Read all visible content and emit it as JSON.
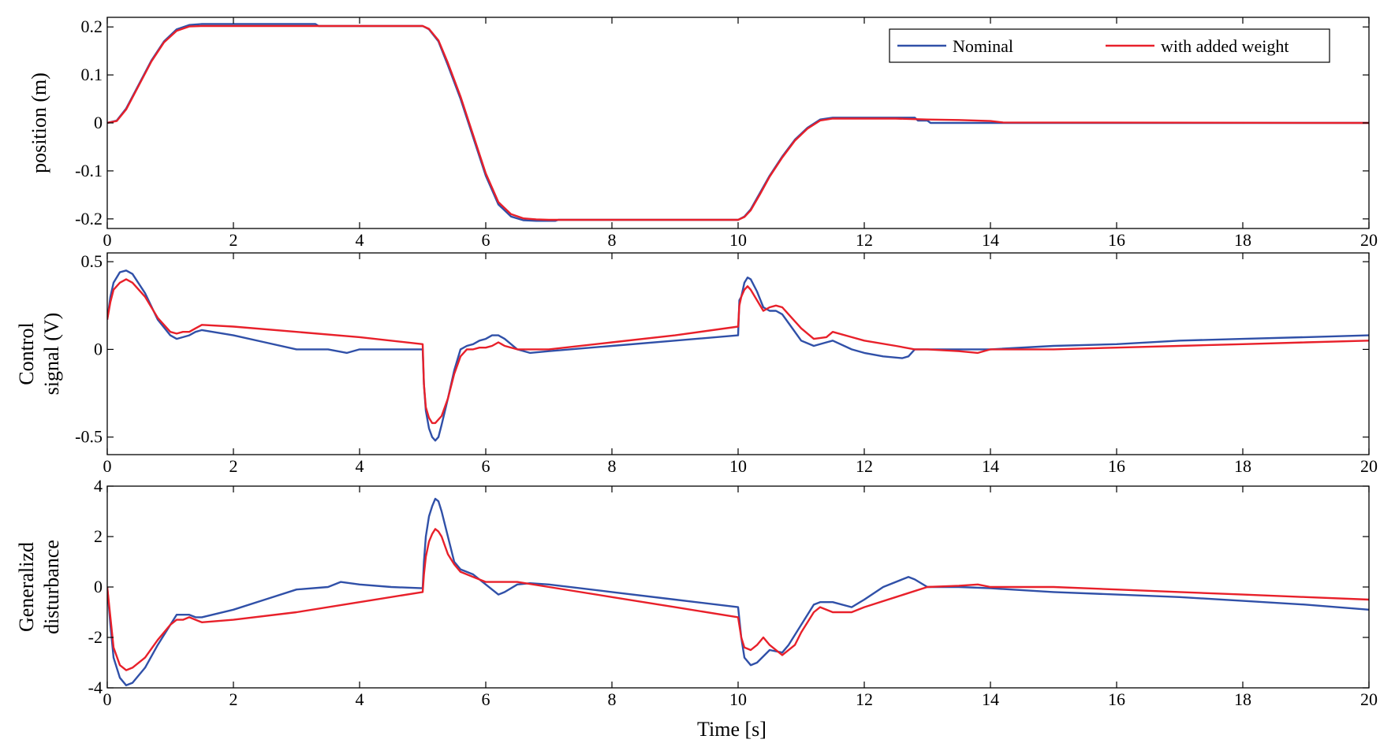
{
  "chart_data": [
    {
      "type": "line",
      "ylabel_lines": [
        "position (m)"
      ],
      "xlim": [
        0,
        20
      ],
      "ylim": [
        -0.22,
        0.22
      ],
      "xticks": [
        0,
        2,
        4,
        6,
        8,
        10,
        12,
        14,
        16,
        18,
        20
      ],
      "yticks": [
        -0.2,
        -0.1,
        0,
        0.1,
        0.2
      ],
      "ytick_labels": [
        "-0.2",
        "-0.1",
        "0",
        "0.1",
        "0.2"
      ],
      "grid": false,
      "legend": {
        "placement": "top-right",
        "entries": [
          "Nominal",
          "with added weight"
        ]
      },
      "series": [
        {
          "name": "Nominal",
          "color": "#3050a8",
          "x": [
            0,
            0.15,
            0.3,
            0.5,
            0.7,
            0.9,
            1.1,
            1.3,
            1.5,
            3.3,
            3.35,
            5.0,
            5.1,
            5.25,
            5.4,
            5.6,
            5.8,
            6.0,
            6.2,
            6.4,
            6.6,
            6.8,
            7.1,
            7.15,
            10.0,
            10.1,
            10.2,
            10.35,
            10.5,
            10.7,
            10.9,
            11.1,
            11.3,
            11.5,
            12.8,
            12.85,
            13.0,
            13.05,
            14.2,
            20
          ],
          "y": [
            0,
            0.005,
            0.03,
            0.08,
            0.13,
            0.17,
            0.195,
            0.204,
            0.206,
            0.206,
            0.202,
            0.202,
            0.195,
            0.17,
            0.12,
            0.05,
            -0.03,
            -0.11,
            -0.17,
            -0.195,
            -0.203,
            -0.204,
            -0.204,
            -0.202,
            -0.202,
            -0.195,
            -0.18,
            -0.145,
            -0.11,
            -0.07,
            -0.035,
            -0.01,
            0.007,
            0.011,
            0.011,
            0.005,
            0.005,
            0.0,
            0.0,
            0.0
          ]
        },
        {
          "name": "with added weight",
          "color": "#e8202a",
          "x": [
            0,
            0.15,
            0.3,
            0.5,
            0.7,
            0.9,
            1.1,
            1.3,
            1.5,
            5.0,
            5.1,
            5.25,
            5.4,
            5.6,
            5.8,
            6.0,
            6.2,
            6.4,
            6.6,
            6.8,
            7.0,
            10.0,
            10.1,
            10.2,
            10.35,
            10.5,
            10.7,
            10.9,
            11.1,
            11.3,
            11.5,
            12.5,
            13.0,
            13.5,
            14.0,
            14.2,
            20
          ],
          "y": [
            0,
            0.004,
            0.028,
            0.078,
            0.128,
            0.168,
            0.192,
            0.201,
            0.202,
            0.202,
            0.196,
            0.172,
            0.125,
            0.055,
            -0.025,
            -0.105,
            -0.165,
            -0.19,
            -0.199,
            -0.201,
            -0.202,
            -0.202,
            -0.196,
            -0.182,
            -0.148,
            -0.112,
            -0.072,
            -0.037,
            -0.012,
            0.005,
            0.009,
            0.009,
            0.007,
            0.006,
            0.004,
            0.001,
            0.0
          ]
        }
      ]
    },
    {
      "type": "line",
      "ylabel_lines": [
        "Control",
        "signal (V)"
      ],
      "xlim": [
        0,
        20
      ],
      "ylim": [
        -0.6,
        0.55
      ],
      "xticks": [
        0,
        2,
        4,
        6,
        8,
        10,
        12,
        14,
        16,
        18,
        20
      ],
      "yticks": [
        -0.5,
        0,
        0.5
      ],
      "ytick_labels": [
        "-0.5",
        "0",
        "0.5"
      ],
      "grid": false,
      "series": [
        {
          "name": "Nominal",
          "color": "#3050a8",
          "x": [
            0,
            0.05,
            0.1,
            0.2,
            0.3,
            0.4,
            0.6,
            0.8,
            1.0,
            1.1,
            1.2,
            1.3,
            1.4,
            1.5,
            2.0,
            2.5,
            3.0,
            3.5,
            3.8,
            4.0,
            4.5,
            5.0,
            5.02,
            5.05,
            5.1,
            5.15,
            5.2,
            5.25,
            5.3,
            5.4,
            5.5,
            5.6,
            5.7,
            5.8,
            5.9,
            6.0,
            6.1,
            6.2,
            6.3,
            6.5,
            6.7,
            7.0,
            8.0,
            9.0,
            10.0,
            10.02,
            10.05,
            10.1,
            10.15,
            10.2,
            10.3,
            10.4,
            10.5,
            10.6,
            10.7,
            10.8,
            11.0,
            11.2,
            11.4,
            11.5,
            11.8,
            12.0,
            12.3,
            12.6,
            12.7,
            12.8,
            13.0,
            13.5,
            14.0,
            15.0,
            16.0,
            17.0,
            18.0,
            19.0,
            20.0
          ],
          "y": [
            0.17,
            0.3,
            0.38,
            0.44,
            0.45,
            0.43,
            0.32,
            0.17,
            0.08,
            0.06,
            0.07,
            0.08,
            0.1,
            0.11,
            0.08,
            0.04,
            0.0,
            0.0,
            -0.02,
            0.0,
            0.0,
            0.0,
            -0.2,
            -0.35,
            -0.45,
            -0.5,
            -0.52,
            -0.5,
            -0.43,
            -0.28,
            -0.12,
            0.0,
            0.02,
            0.03,
            0.05,
            0.06,
            0.08,
            0.08,
            0.06,
            0.0,
            -0.02,
            -0.01,
            0.02,
            0.05,
            0.08,
            0.28,
            0.3,
            0.38,
            0.41,
            0.4,
            0.33,
            0.24,
            0.22,
            0.22,
            0.2,
            0.15,
            0.05,
            0.02,
            0.04,
            0.05,
            0.0,
            -0.02,
            -0.04,
            -0.05,
            -0.04,
            0.0,
            0.0,
            0.0,
            0.0,
            0.02,
            0.03,
            0.05,
            0.06,
            0.07,
            0.08
          ]
        },
        {
          "name": "with added weight",
          "color": "#e8202a",
          "x": [
            0,
            0.05,
            0.1,
            0.2,
            0.3,
            0.4,
            0.6,
            0.8,
            1.0,
            1.1,
            1.2,
            1.3,
            1.4,
            1.5,
            2.0,
            3.0,
            4.0,
            5.0,
            5.02,
            5.05,
            5.1,
            5.15,
            5.2,
            5.3,
            5.4,
            5.5,
            5.6,
            5.7,
            5.8,
            5.9,
            6.0,
            6.1,
            6.2,
            6.3,
            6.5,
            7.0,
            8.0,
            9.0,
            10.0,
            10.02,
            10.05,
            10.1,
            10.15,
            10.2,
            10.3,
            10.4,
            10.5,
            10.6,
            10.7,
            10.8,
            11.0,
            11.2,
            11.4,
            11.5,
            11.8,
            12.0,
            12.5,
            12.8,
            13.0,
            13.5,
            13.8,
            14.0,
            14.5,
            15.0,
            16.0,
            17.0,
            18.0,
            19.0,
            20.0
          ],
          "y": [
            0.17,
            0.27,
            0.34,
            0.38,
            0.4,
            0.38,
            0.3,
            0.18,
            0.1,
            0.09,
            0.1,
            0.1,
            0.12,
            0.14,
            0.13,
            0.1,
            0.07,
            0.03,
            -0.2,
            -0.33,
            -0.39,
            -0.42,
            -0.42,
            -0.38,
            -0.28,
            -0.14,
            -0.04,
            0.0,
            0.0,
            0.01,
            0.01,
            0.02,
            0.04,
            0.02,
            0.0,
            0.0,
            0.04,
            0.08,
            0.13,
            0.25,
            0.3,
            0.34,
            0.36,
            0.34,
            0.28,
            0.22,
            0.24,
            0.25,
            0.24,
            0.2,
            0.12,
            0.06,
            0.07,
            0.1,
            0.07,
            0.05,
            0.02,
            0.0,
            0.0,
            -0.01,
            -0.02,
            0.0,
            0.0,
            0.0,
            0.01,
            0.02,
            0.03,
            0.04,
            0.05
          ]
        }
      ]
    },
    {
      "type": "line",
      "ylabel_lines": [
        "Generalizd",
        "disturbance"
      ],
      "xlabel": "Time [s]",
      "xlim": [
        0,
        20
      ],
      "ylim": [
        -4,
        4
      ],
      "xticks": [
        0,
        2,
        4,
        6,
        8,
        10,
        12,
        14,
        16,
        18,
        20
      ],
      "yticks": [
        -4,
        -2,
        0,
        2,
        4
      ],
      "ytick_labels": [
        "-4",
        "-2",
        "0",
        "2",
        "4"
      ],
      "grid": false,
      "series": [
        {
          "name": "Nominal",
          "color": "#3050a8",
          "x": [
            0,
            0.05,
            0.1,
            0.2,
            0.3,
            0.4,
            0.6,
            0.8,
            1.0,
            1.1,
            1.2,
            1.3,
            1.4,
            1.5,
            2.0,
            2.5,
            3.0,
            3.5,
            3.7,
            4.0,
            4.5,
            5.0,
            5.02,
            5.05,
            5.1,
            5.15,
            5.2,
            5.25,
            5.3,
            5.4,
            5.5,
            5.6,
            5.8,
            6.0,
            6.2,
            6.3,
            6.5,
            6.7,
            7.0,
            8.0,
            9.0,
            10.0,
            10.05,
            10.1,
            10.2,
            10.3,
            10.5,
            10.7,
            10.8,
            11.0,
            11.2,
            11.3,
            11.5,
            11.8,
            12.0,
            12.3,
            12.6,
            12.7,
            12.8,
            13.0,
            13.5,
            14.0,
            15.0,
            16.0,
            17.0,
            18.0,
            19.0,
            20.0
          ],
          "y": [
            0.0,
            -1.5,
            -2.8,
            -3.6,
            -3.9,
            -3.8,
            -3.2,
            -2.3,
            -1.5,
            -1.1,
            -1.1,
            -1.1,
            -1.2,
            -1.2,
            -0.9,
            -0.5,
            -0.1,
            0.0,
            0.2,
            0.1,
            0.0,
            -0.05,
            1.0,
            2.0,
            2.8,
            3.2,
            3.5,
            3.4,
            3.0,
            2.0,
            1.0,
            0.7,
            0.5,
            0.1,
            -0.3,
            -0.2,
            0.1,
            0.15,
            0.1,
            -0.2,
            -0.5,
            -0.8,
            -2.0,
            -2.8,
            -3.1,
            -3.0,
            -2.5,
            -2.6,
            -2.3,
            -1.5,
            -0.7,
            -0.6,
            -0.6,
            -0.8,
            -0.5,
            0.0,
            0.3,
            0.4,
            0.3,
            0.0,
            0.0,
            -0.05,
            -0.2,
            -0.3,
            -0.4,
            -0.55,
            -0.7,
            -0.9
          ]
        },
        {
          "name": "with added weight",
          "color": "#e8202a",
          "x": [
            0,
            0.05,
            0.1,
            0.2,
            0.3,
            0.4,
            0.6,
            0.8,
            1.0,
            1.1,
            1.2,
            1.3,
            1.4,
            1.5,
            2.0,
            3.0,
            4.0,
            5.0,
            5.02,
            5.05,
            5.1,
            5.15,
            5.2,
            5.25,
            5.3,
            5.4,
            5.5,
            5.6,
            5.8,
            6.0,
            6.2,
            6.5,
            7.0,
            8.0,
            9.0,
            10.0,
            10.05,
            10.1,
            10.2,
            10.3,
            10.4,
            10.5,
            10.7,
            10.9,
            11.0,
            11.2,
            11.3,
            11.5,
            11.8,
            12.0,
            12.5,
            13.0,
            13.5,
            13.8,
            14.0,
            15.0,
            16.0,
            17.0,
            18.0,
            19.0,
            20.0
          ],
          "y": [
            0.0,
            -1.2,
            -2.4,
            -3.1,
            -3.3,
            -3.2,
            -2.8,
            -2.1,
            -1.5,
            -1.3,
            -1.3,
            -1.2,
            -1.3,
            -1.4,
            -1.3,
            -1.0,
            -0.6,
            -0.2,
            0.5,
            1.2,
            1.8,
            2.1,
            2.3,
            2.2,
            2.0,
            1.3,
            0.9,
            0.6,
            0.4,
            0.2,
            0.2,
            0.2,
            0.0,
            -0.4,
            -0.8,
            -1.2,
            -2.0,
            -2.4,
            -2.5,
            -2.3,
            -2.0,
            -2.3,
            -2.7,
            -2.3,
            -1.8,
            -1.0,
            -0.8,
            -1.0,
            -1.0,
            -0.8,
            -0.4,
            0.0,
            0.05,
            0.1,
            0.0,
            0.0,
            -0.1,
            -0.2,
            -0.3,
            -0.4,
            -0.5
          ]
        }
      ]
    }
  ]
}
